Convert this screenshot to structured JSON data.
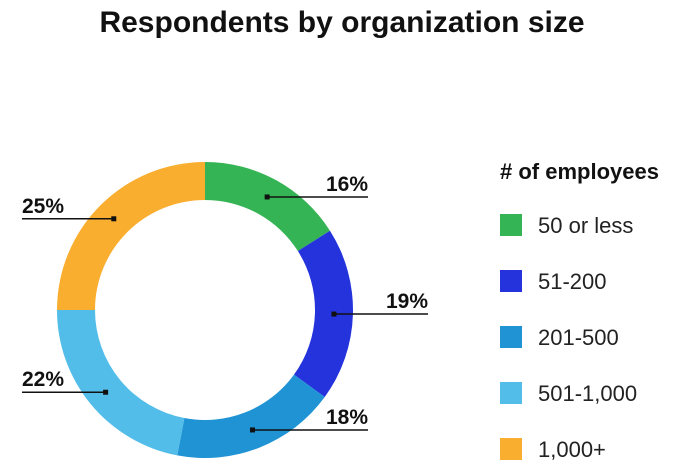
{
  "chart_data": {
    "type": "pie",
    "title": "Respondents by organization size",
    "legend_title": "# of employees",
    "legend_position": "right",
    "donut": true,
    "slices": [
      {
        "label": "50 or less",
        "value": 16,
        "value_label": "16%",
        "color": "#35b455"
      },
      {
        "label": "51-200",
        "value": 19,
        "value_label": "19%",
        "color": "#2433dc"
      },
      {
        "label": "201-500",
        "value": 18,
        "value_label": "18%",
        "color": "#1f93d4"
      },
      {
        "label": "501-1,000",
        "value": 22,
        "value_label": "22%",
        "color": "#52bde9"
      },
      {
        "label": "1,000+",
        "value": 25,
        "value_label": "25%",
        "color": "#f9ae2f"
      }
    ]
  }
}
